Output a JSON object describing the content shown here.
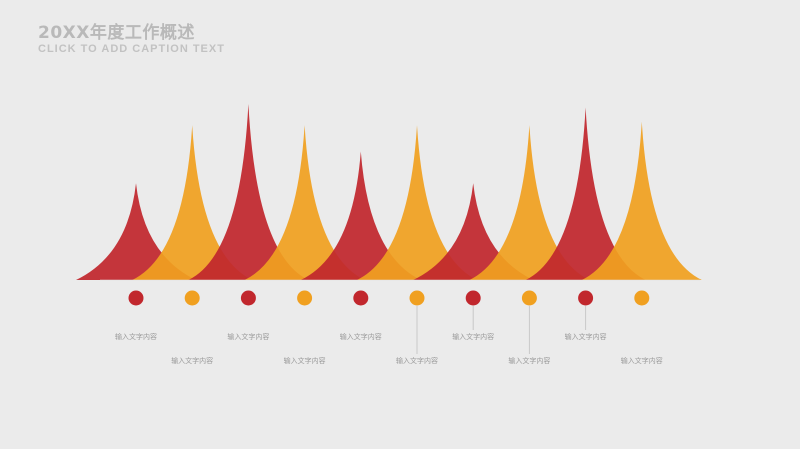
{
  "header": {
    "title": "20XX年度工作概述",
    "subtitle": "CLICK TO ADD CAPTION TEXT"
  },
  "colors": {
    "red": "#c1272d",
    "orange": "#f0a020",
    "background": "#ebebeb"
  },
  "timeline": {
    "items": [
      {
        "color": "red",
        "label": "输入文字内容",
        "peak_level": 0.55
      },
      {
        "color": "orange",
        "label": "输入文字内容",
        "peak_level": 0.88
      },
      {
        "color": "red",
        "label": "输入文字内容",
        "peak_level": 1.0
      },
      {
        "color": "orange",
        "label": "输入文字内容",
        "peak_level": 0.88
      },
      {
        "color": "red",
        "label": "输入文字内容",
        "peak_level": 0.73
      },
      {
        "color": "orange",
        "label": "输入文字内容",
        "peak_level": 0.88
      },
      {
        "color": "red",
        "label": "输入文字内容",
        "peak_level": 0.55
      },
      {
        "color": "orange",
        "label": "输入文字内容",
        "peak_level": 0.88
      },
      {
        "color": "red",
        "label": "输入文字内容",
        "peak_level": 0.98
      },
      {
        "color": "orange",
        "label": "输入文字内容",
        "peak_level": 0.9
      }
    ]
  }
}
